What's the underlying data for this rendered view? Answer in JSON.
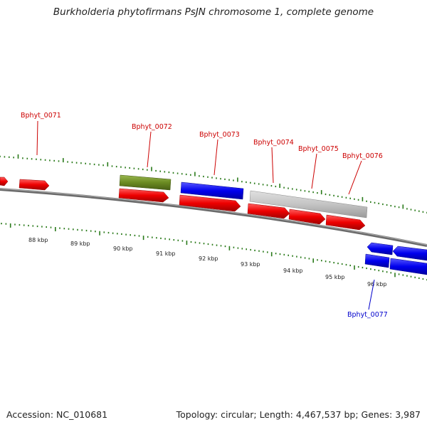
{
  "title": "Burkholderia phytofirmans PsJN chromosome 1, complete genome",
  "accession": "Accession: NC_010681",
  "topology": "Topology: circular",
  "length": "Length: 4,467,537 bp",
  "genes": "Genes: 3,987",
  "colors": {
    "backbone": "#777777",
    "tick": "#2a7a1a",
    "forward_label": "#cc0000",
    "reverse_label": "#0000cc",
    "feature_red": "#ee0000",
    "feature_blue": "#0000ee",
    "feature_olive": "#6b8b22",
    "feature_grey": "#c4c4c4"
  },
  "axis": {
    "unit": "kbp",
    "ticks": [
      88,
      89,
      90,
      91,
      92,
      93,
      94,
      95,
      96
    ],
    "tick_labels": [
      "88 kbp",
      "89 kbp",
      "90 kbp",
      "91 kbp",
      "92 kbp",
      "93 kbp",
      "94 kbp",
      "95 kbp",
      "96 kbp"
    ]
  },
  "gene_labels": [
    {
      "text": "Bphyt_0071",
      "strand": "forward"
    },
    {
      "text": "Bphyt_0072",
      "strand": "forward"
    },
    {
      "text": "Bphyt_0073",
      "strand": "forward"
    },
    {
      "text": "Bphyt_0074",
      "strand": "forward"
    },
    {
      "text": "Bphyt_0075",
      "strand": "forward"
    },
    {
      "text": "Bphyt_0076",
      "strand": "forward"
    },
    {
      "text": "Bphyt_0077",
      "strand": "reverse"
    }
  ]
}
